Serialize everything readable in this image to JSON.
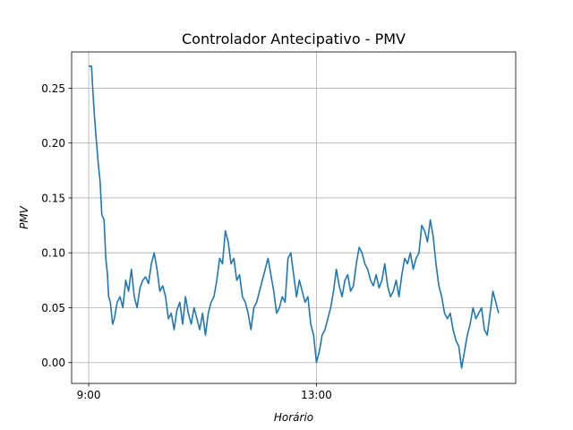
{
  "chart_data": {
    "type": "line",
    "title": "Controlador Antecipativo - PMV",
    "xlabel": "Horário",
    "ylabel": "PMV",
    "x_range_hours": [
      8.7,
      16.5
    ],
    "xlim": [
      8.7,
      16.5
    ],
    "ylim": [
      -0.019,
      0.283
    ],
    "xticks": [
      {
        "value": 9,
        "label": "9:00"
      },
      {
        "value": 13,
        "label": "13:00"
      }
    ],
    "yticks": [
      {
        "value": 0.0,
        "label": "0.00"
      },
      {
        "value": 0.05,
        "label": "0.05"
      },
      {
        "value": 0.1,
        "label": "0.10"
      },
      {
        "value": 0.15,
        "label": "0.15"
      },
      {
        "value": 0.2,
        "label": "0.20"
      },
      {
        "value": 0.25,
        "label": "0.25"
      }
    ],
    "grid": true,
    "color": "#1f77b4",
    "series": [
      {
        "x": [
          9.0,
          9.05,
          9.07,
          9.1,
          9.13,
          9.17,
          9.2,
          9.23,
          9.27,
          9.3,
          9.33,
          9.35,
          9.38,
          9.42,
          9.45,
          9.5,
          9.55,
          9.6,
          9.65,
          9.7,
          9.75,
          9.8,
          9.85,
          9.9,
          9.95,
          10.0,
          10.05,
          10.1,
          10.15,
          10.2,
          10.25,
          10.3,
          10.35,
          10.4,
          10.45,
          10.5,
          10.55,
          10.6,
          10.65,
          10.7,
          10.75,
          10.8,
          10.85,
          10.9,
          10.95,
          11.0,
          11.05,
          11.1,
          11.15,
          11.2,
          11.25,
          11.3,
          11.35,
          11.4,
          11.45,
          11.5,
          11.55,
          11.6,
          11.65,
          11.7,
          11.75,
          11.8,
          11.85,
          11.9,
          11.95,
          12.0,
          12.05,
          12.1,
          12.15,
          12.2,
          12.25,
          12.3,
          12.35,
          12.4,
          12.45,
          12.5,
          12.55,
          12.6,
          12.65,
          12.7,
          12.75,
          12.8,
          12.85,
          12.9,
          12.95,
          13.0,
          13.05,
          13.1,
          13.15,
          13.2,
          13.25,
          13.3,
          13.35,
          13.4,
          13.45,
          13.5,
          13.55,
          13.6,
          13.65,
          13.7,
          13.75,
          13.8,
          13.85,
          13.9,
          13.95,
          14.0,
          14.05,
          14.1,
          14.15,
          14.2,
          14.25,
          14.3,
          14.35,
          14.4,
          14.45,
          14.5,
          14.55,
          14.6,
          14.65,
          14.7,
          14.75,
          14.8,
          14.85,
          14.9,
          14.95,
          15.0,
          15.05,
          15.1,
          15.15,
          15.2,
          15.25,
          15.3,
          15.35,
          15.4,
          15.45,
          15.5,
          15.55,
          15.6,
          15.65,
          15.7,
          15.75,
          15.8,
          15.85,
          15.9,
          15.95,
          16.0,
          16.05,
          16.1,
          16.15,
          16.2
        ],
        "y": [
          0.27,
          0.27,
          0.25,
          0.225,
          0.205,
          0.18,
          0.165,
          0.135,
          0.13,
          0.095,
          0.08,
          0.06,
          0.055,
          0.035,
          0.04,
          0.055,
          0.06,
          0.05,
          0.075,
          0.065,
          0.085,
          0.06,
          0.05,
          0.068,
          0.075,
          0.078,
          0.072,
          0.09,
          0.1,
          0.085,
          0.065,
          0.07,
          0.06,
          0.04,
          0.045,
          0.03,
          0.048,
          0.055,
          0.035,
          0.06,
          0.045,
          0.035,
          0.05,
          0.04,
          0.03,
          0.045,
          0.025,
          0.045,
          0.055,
          0.06,
          0.075,
          0.095,
          0.09,
          0.12,
          0.11,
          0.09,
          0.095,
          0.075,
          0.08,
          0.06,
          0.055,
          0.045,
          0.03,
          0.05,
          0.055,
          0.065,
          0.075,
          0.085,
          0.095,
          0.08,
          0.065,
          0.045,
          0.05,
          0.06,
          0.055,
          0.095,
          0.1,
          0.08,
          0.06,
          0.075,
          0.065,
          0.055,
          0.06,
          0.035,
          0.025,
          0.0,
          0.01,
          0.025,
          0.03,
          0.04,
          0.05,
          0.065,
          0.085,
          0.07,
          0.06,
          0.075,
          0.08,
          0.065,
          0.07,
          0.09,
          0.105,
          0.1,
          0.09,
          0.085,
          0.075,
          0.07,
          0.08,
          0.068,
          0.075,
          0.09,
          0.07,
          0.06,
          0.065,
          0.075,
          0.06,
          0.08,
          0.095,
          0.09,
          0.1,
          0.085,
          0.095,
          0.1,
          0.125,
          0.12,
          0.11,
          0.13,
          0.115,
          0.09,
          0.07,
          0.06,
          0.045,
          0.04,
          0.045,
          0.03,
          0.02,
          0.015,
          -0.005,
          0.01,
          0.025,
          0.035,
          0.05,
          0.04,
          0.045,
          0.05,
          0.03,
          0.025,
          0.045,
          0.065,
          0.055,
          0.045
        ]
      }
    ]
  }
}
